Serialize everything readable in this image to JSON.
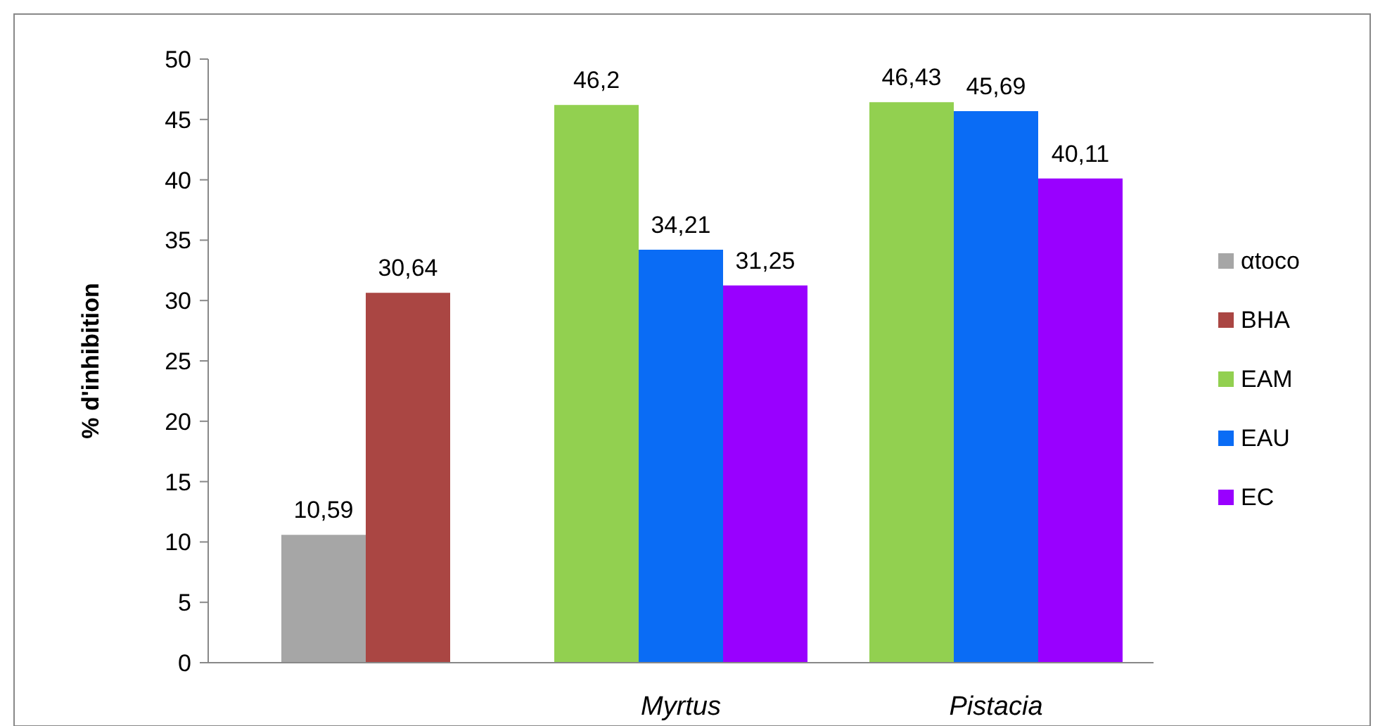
{
  "chart_data": {
    "type": "bar",
    "ylabel": "% d'inhibition",
    "categories": [
      null,
      "Myrtus",
      "Pistacia"
    ],
    "series": [
      {
        "name": "αtoco",
        "color": "#a6a6a6",
        "values": [
          10.59,
          null,
          null
        ],
        "value_labels": [
          "10,59",
          null,
          null
        ]
      },
      {
        "name": "BHA",
        "color": "#aa4643",
        "values": [
          30.64,
          null,
          null
        ],
        "value_labels": [
          "30,64",
          null,
          null
        ]
      },
      {
        "name": "EAM",
        "color": "#92d050",
        "values": [
          null,
          46.2,
          46.43
        ],
        "value_labels": [
          null,
          "46,2",
          "46,43"
        ]
      },
      {
        "name": "EAU",
        "color": "#0a6cf5",
        "values": [
          null,
          34.21,
          45.69
        ],
        "value_labels": [
          null,
          "34,21",
          "45,69"
        ]
      },
      {
        "name": "EC",
        "color": "#9900ff",
        "values": [
          null,
          31.25,
          40.11
        ],
        "value_labels": [
          null,
          "31,25",
          "40,11"
        ]
      }
    ],
    "ylim": [
      0,
      50
    ],
    "yticks": [
      0,
      5,
      10,
      15,
      20,
      25,
      30,
      35,
      40,
      45,
      50
    ],
    "grid": false,
    "legend": "right"
  }
}
